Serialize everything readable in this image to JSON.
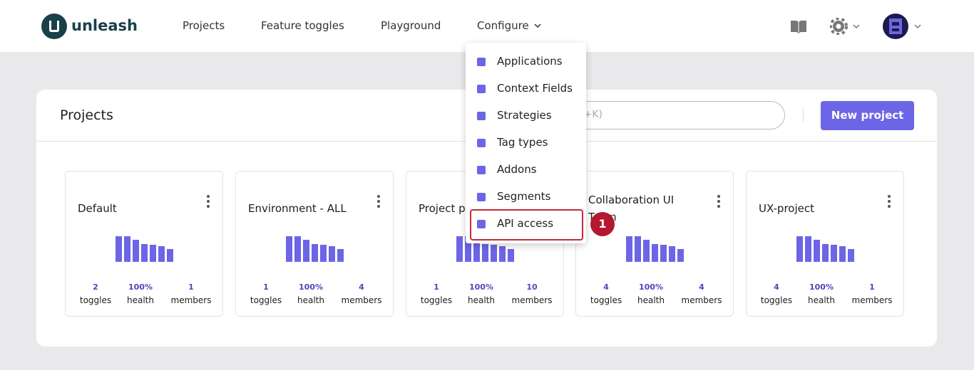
{
  "nav": {
    "logo": "unleash",
    "links": [
      "Projects",
      "Feature toggles",
      "Playground",
      "Configure"
    ]
  },
  "menu": {
    "items": [
      "Applications",
      "Context Fields",
      "Strategies",
      "Tag types",
      "Addons",
      "Segments",
      "API access"
    ],
    "badge": "1"
  },
  "projects": {
    "title": "Projects",
    "search_placeholder": "Search (Ctrl+K)",
    "new_button": "New project",
    "cards": [
      {
        "name": "Default",
        "toggles": "2",
        "health": "100%",
        "members": "1"
      },
      {
        "name": "Environment - ALL",
        "toggles": "1",
        "health": "100%",
        "members": "4"
      },
      {
        "name": "Project permissions",
        "toggles": "1",
        "health": "100%",
        "members": "10"
      },
      {
        "name": "Collaboration UI Team",
        "toggles": "4",
        "health": "100%",
        "members": "4"
      },
      {
        "name": "UX-project",
        "toggles": "4",
        "health": "100%",
        "members": "1"
      }
    ],
    "stat_labels": {
      "toggles": "toggles",
      "health": "health",
      "members": "members"
    }
  }
}
